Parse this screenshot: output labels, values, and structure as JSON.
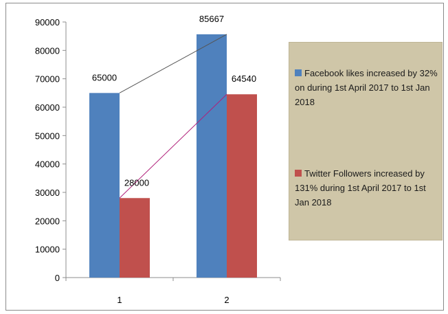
{
  "chart_data": {
    "type": "bar",
    "categories": [
      "1",
      "2"
    ],
    "series": [
      {
        "name": "Facebook likes increased by 32% on during 1st April 2017 to 1st Jan 2018",
        "values": [
          65000,
          85667
        ],
        "color": "#4f81bd",
        "trend_color": "#555555"
      },
      {
        "name": "Twitter Followers increased by 131% during 1st April 2017 to 1st Jan 2018",
        "values": [
          28000,
          64540
        ],
        "color": "#c0504d",
        "trend_color": "#b0207a"
      }
    ],
    "data_labels": [
      "65000",
      "28000",
      "85667",
      "64540"
    ],
    "y_ticks": [
      "0",
      "10000",
      "20000",
      "30000",
      "40000",
      "50000",
      "60000",
      "70000",
      "80000",
      "90000"
    ],
    "ylim": [
      0,
      90000
    ],
    "grid": false,
    "legend_position": "right",
    "title": "",
    "xlabel": "",
    "ylabel": ""
  }
}
